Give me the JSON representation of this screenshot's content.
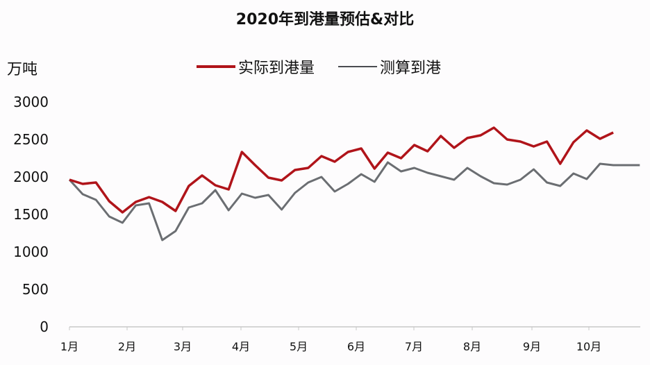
{
  "title": "2020年到港量预估&对比",
  "unit_label": "万吨",
  "legend": [
    {
      "label": "实际到港量",
      "color": "#b0141a"
    },
    {
      "label": "测算到港",
      "color": "#6b6e72"
    }
  ],
  "chart_data": {
    "type": "line",
    "title": "2020年到港量预估&对比",
    "xlabel": "",
    "ylabel": "万吨",
    "ylim": [
      0,
      3000
    ],
    "yticks": [
      0,
      500,
      1000,
      1500,
      2000,
      2500,
      3000
    ],
    "xtick_labels": [
      "1月",
      "2月",
      "3月",
      "4月",
      "5月",
      "6月",
      "7月",
      "8月",
      "9月",
      "10月"
    ],
    "grid": false,
    "legend_position": "top",
    "x_note": "weekly points; index 0 = start of 1月, ~4.4 points per month",
    "series": [
      {
        "name": "实际到港量",
        "color": "#b0141a",
        "values": [
          1963,
          1907,
          1926,
          1676,
          1528,
          1667,
          1731,
          1667,
          1546,
          1880,
          2019,
          1889,
          1833,
          2333,
          2157,
          1991,
          1954,
          2093,
          2120,
          2278,
          2204,
          2333,
          2380,
          2111,
          2324,
          2250,
          2426,
          2343,
          2546,
          2389,
          2519,
          2556,
          2657,
          2500,
          2472,
          2407,
          2472,
          2176,
          2463,
          2620,
          2509,
          2593
        ]
      },
      {
        "name": "测算到港",
        "color": "#6b6e72",
        "values": [
          1963,
          1769,
          1694,
          1472,
          1389,
          1620,
          1648,
          1157,
          1278,
          1593,
          1648,
          1824,
          1556,
          1778,
          1722,
          1759,
          1565,
          1787,
          1926,
          2000,
          1806,
          1907,
          2037,
          1935,
          2194,
          2074,
          2120,
          2056,
          2009,
          1963,
          2120,
          2009,
          1917,
          1898,
          1963,
          2102,
          1926,
          1880,
          2046,
          1972,
          2176,
          2157,
          2157,
          2157
        ]
      }
    ]
  }
}
